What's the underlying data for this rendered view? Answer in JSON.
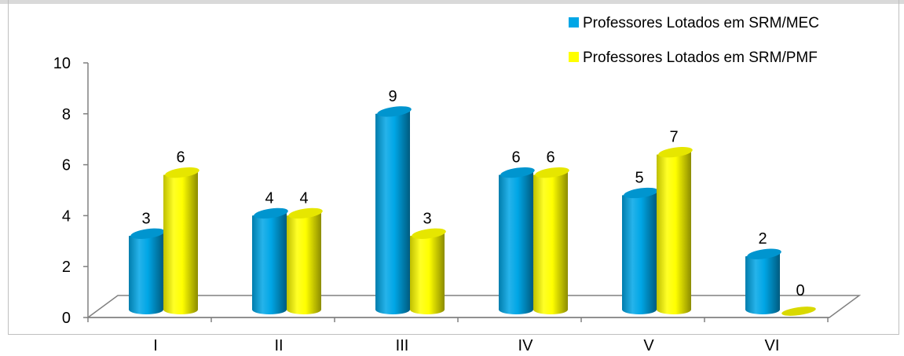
{
  "chart_data": {
    "type": "bar",
    "categories": [
      "I",
      "II",
      "III",
      "IV",
      "V",
      "VI"
    ],
    "series": [
      {
        "name": "Professores Lotados em SRM/MEC",
        "color": "#00A6E6",
        "values": [
          3,
          4,
          9,
          6,
          5,
          2
        ]
      },
      {
        "name": "Professores Lotados em SRM/PMF",
        "color": "#FFFF00",
        "values": [
          6,
          4,
          3,
          6,
          7,
          0
        ]
      }
    ],
    "data_labels": [
      [
        "3",
        "6"
      ],
      [
        "4",
        "4"
      ],
      [
        "9",
        "3"
      ],
      [
        "6",
        "6"
      ],
      [
        "5",
        "7"
      ],
      [
        "2",
        "0"
      ]
    ],
    "yticks": [
      "0",
      "2",
      "4",
      "6",
      "8",
      "10"
    ],
    "ylim": [
      0,
      10
    ],
    "legend_position": "top-right",
    "style": "3d-cylinder"
  }
}
